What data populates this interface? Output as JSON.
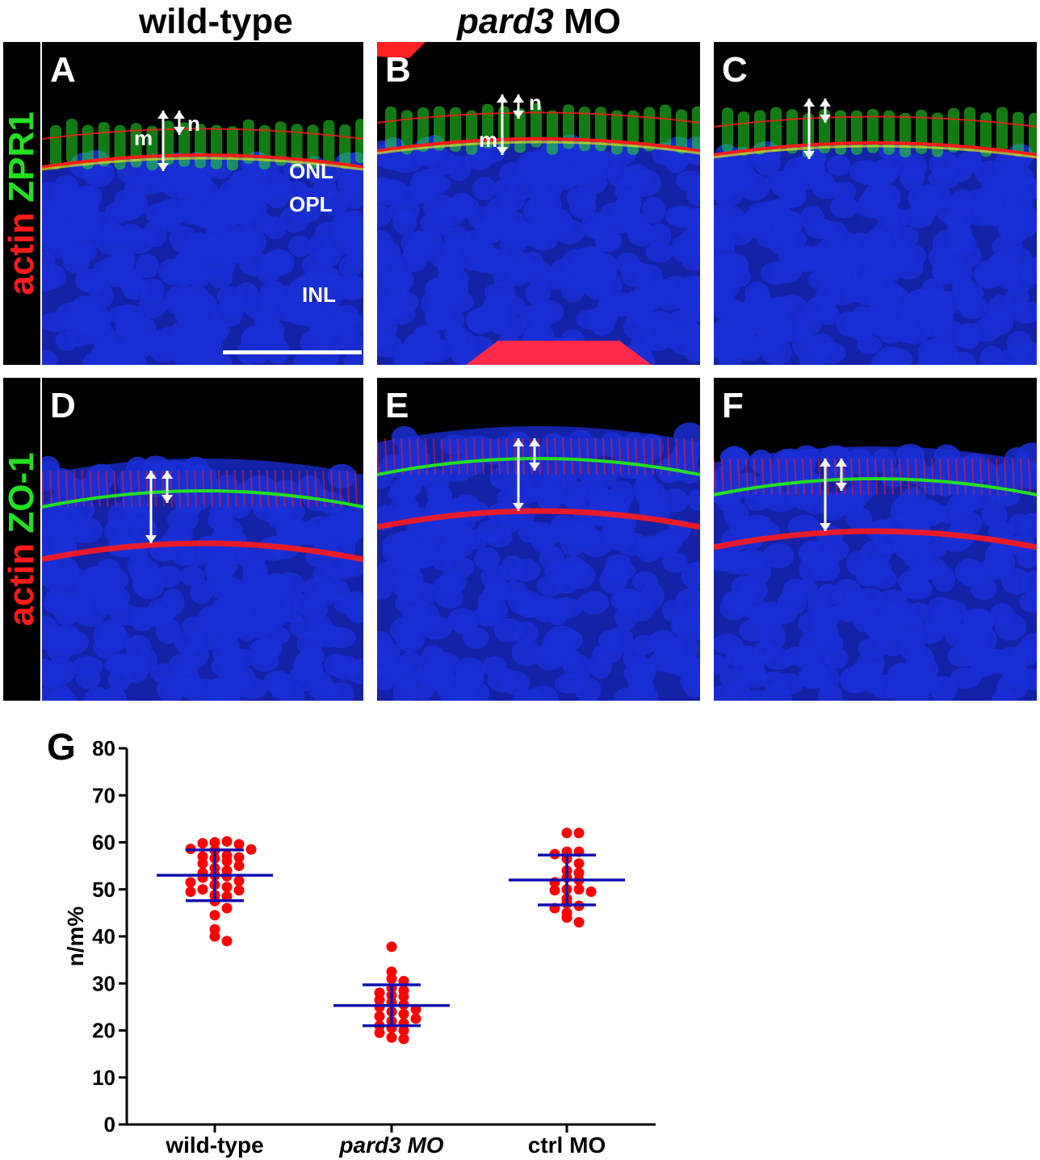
{
  "headers": {
    "wild_type": "wild-type",
    "pard3": "pard3",
    "mo": "MO"
  },
  "row_labels": {
    "top": {
      "red": "actin",
      "green": "ZPR1"
    },
    "bottom": {
      "red": "actin",
      "green": "ZO-1"
    }
  },
  "panels": {
    "A": {
      "label": "A",
      "m": "m",
      "n": "n",
      "onl": "ONL",
      "opl": "OPL",
      "inl": "INL"
    },
    "B": {
      "label": "B",
      "m": "m",
      "n": "n"
    },
    "C": {
      "label": "C"
    },
    "D": {
      "label": "D"
    },
    "E": {
      "label": "E"
    },
    "F": {
      "label": "F"
    },
    "G": {
      "label": "G"
    }
  },
  "colors": {
    "nuclei": "#1a2fd6",
    "actin": "#ff1a1a",
    "zpr1": "#22e022",
    "dot": "#ff0000",
    "bar": "#1010b0"
  },
  "chart_data": {
    "type": "scatter",
    "title": "",
    "xlabel": "",
    "ylabel": "n/m%",
    "ylim": [
      0,
      80
    ],
    "yticks": [
      0,
      10,
      20,
      30,
      40,
      50,
      60,
      70,
      80
    ],
    "grid": false,
    "categories": [
      "wild-type",
      "pard3 MO",
      "ctrl MO"
    ],
    "series": [
      {
        "category": "wild-type",
        "mean": 53,
        "sd_low": 47.6,
        "sd_high": 58.4,
        "values": [
          60,
          60.2,
          59.8,
          59.6,
          58.6,
          58.5,
          58.3,
          57.2,
          57.0,
          56.8,
          56.6,
          56.0,
          55.5,
          55.0,
          54.5,
          54.0,
          53.5,
          53.0,
          52.8,
          52.5,
          51.8,
          51.5,
          51.0,
          50.5,
          50.0,
          49.8,
          49.5,
          48.8,
          48.5,
          47.5,
          46.0,
          44.5,
          41.5,
          40.0,
          39.0
        ]
      },
      {
        "category": "pard3 MO",
        "mean": 25.3,
        "sd_low": 21,
        "sd_high": 29.7,
        "values": [
          37.8,
          32.5,
          31.0,
          30.5,
          29.0,
          28.5,
          28.0,
          27.5,
          27.2,
          26.5,
          26.0,
          25.5,
          25.0,
          24.5,
          24.0,
          23.5,
          23.0,
          22.5,
          22.0,
          21.5,
          21.0,
          20.5,
          20.0,
          19.5,
          18.5,
          18.2
        ]
      },
      {
        "category": "ctrl MO",
        "mean": 52,
        "sd_low": 46.7,
        "sd_high": 57.3,
        "values": [
          62,
          62,
          58,
          58,
          57.5,
          56.5,
          55.5,
          54.0,
          53.5,
          52.5,
          52.0,
          51.5,
          50.0,
          50.0,
          49.8,
          49.5,
          48.0,
          47.0,
          46.5,
          46.0,
          45.0,
          44.0,
          43.0
        ]
      }
    ]
  }
}
